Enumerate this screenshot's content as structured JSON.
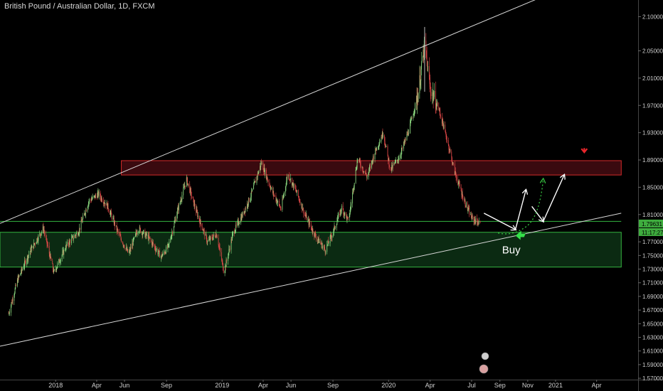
{
  "header": {
    "title": "British Pound / Australian Dollar, 1D, FXCM"
  },
  "chart_data": {
    "type": "candlestick",
    "title": "British Pound / Australian Dollar, 1D, FXCM",
    "ylim": [
      1.568,
      2.112
    ],
    "y_ticks": [
      "2.10000",
      "2.05000",
      "2.01000",
      "1.97000",
      "1.93000",
      "1.89000",
      "1.85000",
      "1.81000",
      "1.77000",
      "1.75000",
      "1.73000",
      "1.71000",
      "1.69000",
      "1.67000",
      "1.65000",
      "1.63000",
      "1.61000",
      "1.59000",
      "1.57000"
    ],
    "x_ticks": [
      {
        "label": "2018",
        "date": "2018-01-01"
      },
      {
        "label": "Apr",
        "date": "2018-04-01"
      },
      {
        "label": "Jun",
        "date": "2018-06-01"
      },
      {
        "label": "Sep",
        "date": "2018-09-01"
      },
      {
        "label": "2019",
        "date": "2019-01-01"
      },
      {
        "label": "Apr",
        "date": "2019-04-01"
      },
      {
        "label": "Jun",
        "date": "2019-06-01"
      },
      {
        "label": "Sep",
        "date": "2019-09-01"
      },
      {
        "label": "2020",
        "date": "2020-01-01"
      },
      {
        "label": "Apr",
        "date": "2020-04-01"
      },
      {
        "label": "Jul",
        "date": "2020-07-01"
      },
      {
        "label": "Sep",
        "date": "2020-09-01"
      },
      {
        "label": "Nov",
        "date": "2020-11-01"
      },
      {
        "label": "2021",
        "date": "2021-01-01"
      },
      {
        "label": "Apr",
        "date": "2021-04-01"
      }
    ],
    "price_path": [
      [
        "2017-09-20",
        1.665
      ],
      [
        "2017-10-10",
        1.715
      ],
      [
        "2017-11-05",
        1.755
      ],
      [
        "2017-12-05",
        1.79
      ],
      [
        "2017-12-28",
        1.725
      ],
      [
        "2018-01-25",
        1.765
      ],
      [
        "2018-02-20",
        1.785
      ],
      [
        "2018-03-15",
        1.83
      ],
      [
        "2018-04-05",
        1.84
      ],
      [
        "2018-04-25",
        1.822
      ],
      [
        "2018-05-20",
        1.78
      ],
      [
        "2018-06-10",
        1.752
      ],
      [
        "2018-07-01",
        1.79
      ],
      [
        "2018-07-25",
        1.775
      ],
      [
        "2018-08-20",
        1.748
      ],
      [
        "2018-09-05",
        1.763
      ],
      [
        "2018-09-25",
        1.815
      ],
      [
        "2018-10-15",
        1.862
      ],
      [
        "2018-11-05",
        1.815
      ],
      [
        "2018-11-30",
        1.77
      ],
      [
        "2018-12-20",
        1.782
      ],
      [
        "2019-01-05",
        1.725
      ],
      [
        "2019-01-25",
        1.783
      ],
      [
        "2019-02-15",
        1.81
      ],
      [
        "2019-03-05",
        1.838
      ],
      [
        "2019-03-28",
        1.886
      ],
      [
        "2019-04-20",
        1.845
      ],
      [
        "2019-05-10",
        1.818
      ],
      [
        "2019-05-25",
        1.87
      ],
      [
        "2019-06-15",
        1.84
      ],
      [
        "2019-07-01",
        1.81
      ],
      [
        "2019-07-25",
        1.778
      ],
      [
        "2019-08-15",
        1.758
      ],
      [
        "2019-09-01",
        1.784
      ],
      [
        "2019-09-20",
        1.82
      ],
      [
        "2019-10-05",
        1.8
      ],
      [
        "2019-10-25",
        1.892
      ],
      [
        "2019-11-15",
        1.865
      ],
      [
        "2019-12-01",
        1.9
      ],
      [
        "2019-12-20",
        1.93
      ],
      [
        "2020-01-05",
        1.875
      ],
      [
        "2020-01-25",
        1.895
      ],
      [
        "2020-02-15",
        1.935
      ],
      [
        "2020-03-05",
        1.985
      ],
      [
        "2020-03-20",
        2.06
      ],
      [
        "2020-04-01",
        1.995
      ],
      [
        "2020-04-20",
        1.965
      ],
      [
        "2020-05-10",
        1.915
      ],
      [
        "2020-05-25",
        1.872
      ],
      [
        "2020-06-15",
        1.83
      ],
      [
        "2020-07-01",
        1.805
      ],
      [
        "2020-07-20",
        1.796
      ]
    ],
    "last_price": "1.79631",
    "countdown": "11:17:27",
    "annotations": {
      "resistance_zone": {
        "y1": 1.889,
        "y2": 1.868,
        "x1": "2018-05-25",
        "x2": "2021-05-25"
      },
      "support_zone": {
        "y1": 1.784,
        "y2": 1.733,
        "x1": "2017-09-01",
        "x2": "2021-05-25"
      },
      "support_line": {
        "y": 1.8,
        "x1": "2017-09-01",
        "x2": "2021-05-25"
      },
      "upper_trendline": [
        [
          "2017-09-01",
          1.797
        ],
        [
          "2020-11-25",
          2.127
        ]
      ],
      "lower_trendline": [
        [
          "2017-09-01",
          1.617
        ],
        [
          "2021-05-25",
          1.812
        ]
      ],
      "arrow_path": [
        [
          "2020-07-28",
          1.812
        ],
        [
          "2020-10-05",
          1.788
        ],
        [
          "2020-10-28",
          1.846
        ],
        [
          "2020-11-10",
          1.822
        ],
        [
          "2020-12-05",
          1.8
        ],
        [
          "2021-01-20",
          1.868
        ]
      ],
      "dotted_path": [
        [
          "2020-08-28",
          1.783
        ],
        [
          "2020-09-28",
          1.778
        ],
        [
          "2020-10-28",
          1.792
        ],
        [
          "2020-12-05",
          1.862
        ]
      ],
      "buy_label": "Buy",
      "buy_point": [
        "2020-10-10",
        1.779
      ],
      "red_arrow": [
        "2021-03-05",
        1.895
      ]
    }
  }
}
